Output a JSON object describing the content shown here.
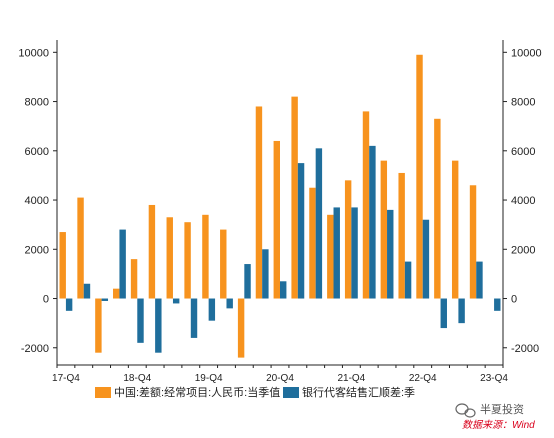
{
  "chart_data": {
    "type": "bar",
    "x_tick_labels": [
      "17-Q4",
      "18-Q4",
      "19-Q4",
      "20-Q4",
      "21-Q4",
      "22-Q4",
      "23-Q4"
    ],
    "series": [
      {
        "name": "中国:差额:经常项目:人民币:当季值",
        "color": "#f7931e",
        "values": [
          2700,
          4100,
          -2200,
          400,
          1600,
          3800,
          3300,
          3100,
          3400,
          2800,
          -2400,
          7800,
          6400,
          8200,
          4500,
          3400,
          4800,
          7600,
          5600,
          5100,
          9900,
          7300,
          5600,
          4600,
          null
        ]
      },
      {
        "name": "银行代客结售汇顺差:季",
        "color": "#1f6e9c",
        "values": [
          -500,
          600,
          -100,
          2800,
          -1800,
          -2200,
          -200,
          -1600,
          -900,
          -400,
          1400,
          2000,
          700,
          5500,
          6100,
          3700,
          3700,
          6200,
          3600,
          1500,
          3200,
          -1200,
          -1000,
          1500,
          -500
        ]
      }
    ],
    "ylim": [
      -2700,
      10500
    ],
    "y_ticks": [
      -2000,
      0,
      2000,
      4000,
      6000,
      8000,
      10000
    ],
    "y_tick_labels": [
      "-2000",
      "0",
      "2000",
      "4000",
      "6000",
      "8000",
      "10000"
    ],
    "grid": false,
    "legend_position": "bottom"
  },
  "watermark": {
    "brand": "半夏投资",
    "source": "数据来源：Wind",
    "icon": "wechat-icon",
    "color_brand": "#555555",
    "color_source": "#d9001b"
  }
}
